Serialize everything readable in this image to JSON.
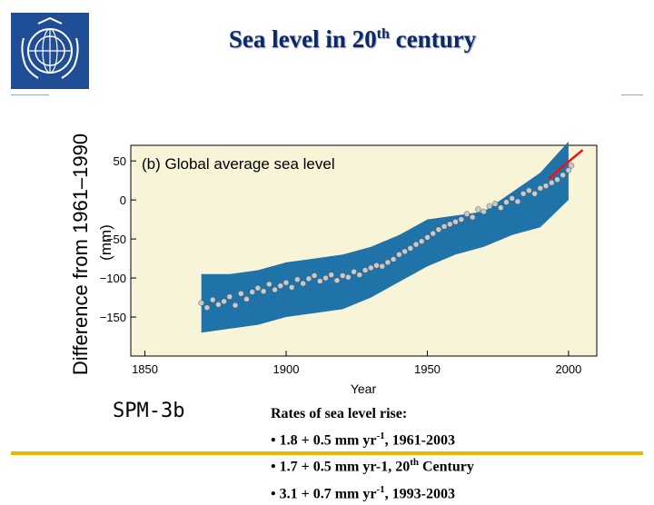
{
  "slide": {
    "title_main": "Sea level in 20",
    "title_sup": "th",
    "title_end": " century",
    "spm_label": "SPM-3b",
    "logo_icon": "wmo-emblem-icon",
    "notes": {
      "heading": "Rates of sea level rise:",
      "lines": [
        {
          "pre": "• 1.8 + 0.5 mm yr",
          "sup": "-1",
          "post": ", 1961-2003"
        },
        {
          "pre": "• 1.7 + 0.5 mm yr-1, 20",
          "sup": "th",
          "post": " Century"
        },
        {
          "pre": "• 3.1 + 0.7 mm yr",
          "sup": "-1",
          "post": ", 1993-2003"
        }
      ]
    },
    "colors": {
      "band": "#1f73a8",
      "plot_bg": "#f8f4d8",
      "points": "#c9c9c9",
      "satellite": "#ee1111",
      "footer": "#f0b400",
      "logo": "#1f4e96"
    }
  },
  "chart_data": {
    "type": "line",
    "title": "(b) Global average sea level",
    "xlabel": "Year",
    "ylabel": "Difference from 1961–1990",
    "ylabel_unit": "(mm)",
    "xlim": [
      1845,
      2010
    ],
    "ylim": [
      -200,
      70
    ],
    "xticks": [
      1850,
      1900,
      1950,
      2000
    ],
    "yticks": [
      50,
      0,
      -50,
      -100,
      -150
    ],
    "grid": false,
    "series": [
      {
        "kind": "uncertainty-band",
        "x": [
          1870,
          1880,
          1890,
          1900,
          1910,
          1920,
          1930,
          1940,
          1950,
          1960,
          1970,
          1980,
          1990,
          2000
        ],
        "lower": [
          -170,
          -165,
          -160,
          -150,
          -145,
          -140,
          -125,
          -105,
          -85,
          -70,
          -60,
          -45,
          -35,
          0
        ],
        "upper": [
          -95,
          -95,
          -90,
          -80,
          -75,
          -70,
          -60,
          -45,
          -25,
          -20,
          -15,
          10,
          35,
          75
        ]
      },
      {
        "kind": "points",
        "x": [
          1870,
          1872,
          1874,
          1876,
          1878,
          1880,
          1882,
          1884,
          1886,
          1888,
          1890,
          1892,
          1894,
          1896,
          1898,
          1900,
          1902,
          1904,
          1906,
          1908,
          1910,
          1912,
          1914,
          1916,
          1918,
          1920,
          1922,
          1924,
          1926,
          1928,
          1930,
          1932,
          1934,
          1936,
          1938,
          1940,
          1942,
          1944,
          1946,
          1948,
          1950,
          1952,
          1954,
          1956,
          1958,
          1960,
          1962,
          1964,
          1966,
          1968,
          1970,
          1972,
          1974,
          1976,
          1978,
          1980,
          1982,
          1984,
          1986,
          1988,
          1990,
          1992,
          1994,
          1996,
          1998,
          2000,
          2001
        ],
        "y": [
          -132,
          -138,
          -128,
          -134,
          -130,
          -124,
          -135,
          -120,
          -127,
          -118,
          -113,
          -117,
          -108,
          -115,
          -110,
          -106,
          -112,
          -102,
          -107,
          -101,
          -97,
          -104,
          -100,
          -96,
          -103,
          -97,
          -99,
          -92,
          -96,
          -90,
          -87,
          -84,
          -85,
          -80,
          -76,
          -70,
          -66,
          -62,
          -57,
          -53,
          -48,
          -43,
          -38,
          -34,
          -31,
          -28,
          -25,
          -18,
          -22,
          -12,
          -15,
          -8,
          -5,
          -10,
          -3,
          2,
          -2,
          8,
          12,
          8,
          15,
          18,
          22,
          26,
          32,
          38,
          44
        ]
      },
      {
        "kind": "satellite-line",
        "x": [
          1993,
          1995,
          1997,
          1999,
          2001,
          2003,
          2005
        ],
        "y": [
          27,
          33,
          40,
          46,
          52,
          58,
          64
        ]
      }
    ]
  }
}
